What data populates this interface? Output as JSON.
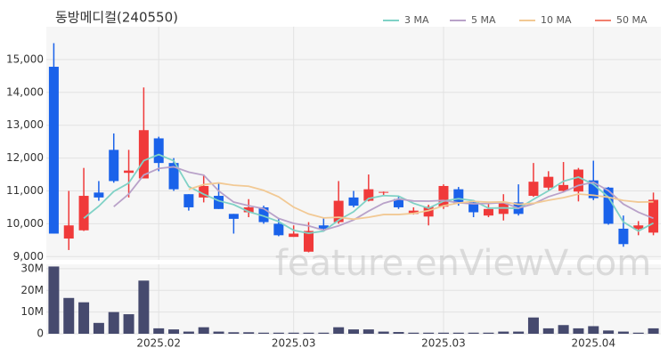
{
  "chart_data": {
    "type": "candlestick",
    "title": "동방메디컬(240550)",
    "watermark": "feature.enViewV.com",
    "categories": [
      null,
      null,
      null,
      null,
      null,
      null,
      null,
      "2025.02",
      null,
      null,
      null,
      null,
      null,
      null,
      null,
      null,
      "2025.03",
      null,
      null,
      null,
      null,
      null,
      null,
      null,
      null,
      null,
      "2025.03",
      null,
      null,
      null,
      null,
      null,
      null,
      null,
      null,
      null,
      "2025.04",
      null,
      null,
      null,
      null
    ],
    "open": [
      14780,
      9550,
      9800,
      10950,
      12250,
      11550,
      11380,
      12600,
      11850,
      10900,
      10800,
      10850,
      10300,
      10350,
      10500,
      10000,
      9600,
      9150,
      9950,
      10050,
      10800,
      10700,
      10950,
      10750,
      10300,
      10220,
      10520,
      11050,
      10650,
      10250,
      10300,
      10650,
      10850,
      11100,
      11000,
      10980,
      11320,
      11100,
      9850,
      9840,
      9730
    ],
    "high": [
      15500,
      11000,
      11700,
      11300,
      12750,
      12250,
      14150,
      12650,
      12000,
      10900,
      11500,
      11250,
      10300,
      10750,
      10550,
      10150,
      9950,
      10050,
      10200,
      11300,
      11000,
      11500,
      10980,
      10850,
      10500,
      10580,
      11200,
      11120,
      10720,
      10600,
      10900,
      11200,
      11850,
      11600,
      11880,
      11700,
      11920,
      11120,
      10250,
      10080,
      10950
    ],
    "low": [
      9700,
      9200,
      9780,
      10700,
      11250,
      10800,
      11380,
      11600,
      11000,
      10400,
      10650,
      10450,
      9700,
      10200,
      10000,
      9620,
      9600,
      9130,
      9800,
      10000,
      10500,
      10680,
      10850,
      10450,
      10280,
      9950,
      10450,
      10550,
      10200,
      10200,
      10100,
      10250,
      10820,
      11000,
      10970,
      10680,
      10720,
      9970,
      9300,
      9650,
      9650
    ],
    "close": [
      9700,
      9950,
      10850,
      10800,
      11300,
      11620,
      12850,
      11850,
      11050,
      10500,
      11150,
      10450,
      10150,
      10500,
      10050,
      9650,
      9700,
      9780,
      9850,
      10700,
      10550,
      11050,
      10970,
      10500,
      10400,
      10520,
      11150,
      10620,
      10350,
      10450,
      10650,
      10300,
      11280,
      11430,
      11180,
      11650,
      10780,
      10000,
      9380,
      9950,
      10730
    ],
    "volume": [
      31000000,
      16500000,
      14500000,
      5000000,
      10000000,
      9000000,
      24500000,
      2500000,
      2000000,
      1000000,
      3000000,
      1000000,
      700000,
      700000,
      500000,
      500000,
      500000,
      500000,
      500000,
      3000000,
      2000000,
      2000000,
      1000000,
      800000,
      500000,
      500000,
      500000,
      500000,
      500000,
      500000,
      1000000,
      1000000,
      7500000,
      2500000,
      4000000,
      2500000,
      3500000,
      1500000,
      1000000,
      500000,
      2500000
    ],
    "up_color": "#f03a3a",
    "down_color": "#1a62ea",
    "volume_color": "#464a6e",
    "series": [
      {
        "name": "3 MA",
        "color": "#80d2c6",
        "values": [
          null,
          null,
          10167,
          10533,
          10983,
          11240,
          11923,
          12107,
          11917,
          11133,
          10900,
          10700,
          10583,
          10367,
          10233,
          10067,
          9800,
          9710,
          9777,
          10110,
          10367,
          10767,
          10857,
          10840,
          10623,
          10473,
          10690,
          10763,
          10707,
          10473,
          10483,
          10467,
          10743,
          11003,
          11297,
          11420,
          11203,
          10810,
          10053,
          9777,
          10020
        ]
      },
      {
        "name": "5 MA",
        "color": "#b9a2c9",
        "values": [
          null,
          null,
          null,
          null,
          10520,
          10904,
          11484,
          11684,
          11734,
          11574,
          11480,
          11000,
          10660,
          10550,
          10460,
          10160,
          10010,
          9936,
          9806,
          9936,
          10116,
          10386,
          10624,
          10754,
          10694,
          10688,
          10708,
          10638,
          10608,
          10618,
          10644,
          10474,
          10606,
          10822,
          10968,
          11168,
          11264,
          11008,
          10598,
          10352,
          10166
        ]
      },
      {
        "name": "10 MA",
        "color": "#f2c994",
        "values": [
          null,
          null,
          null,
          null,
          null,
          null,
          null,
          null,
          null,
          11047,
          11192,
          11242,
          11172,
          11142,
          11017,
          10820,
          10505,
          10298,
          10178,
          10198,
          10138,
          10198,
          10280,
          10280,
          10315,
          10402,
          10547,
          10631,
          10681,
          10656,
          10666,
          10591,
          10622,
          10715,
          10793,
          10906,
          10869,
          10807,
          10710,
          10660,
          10668
        ]
      },
      {
        "name": "50 MA",
        "color": "#f2806e",
        "values": [
          null,
          null,
          null,
          null,
          null,
          null,
          null,
          null,
          null,
          null,
          null,
          null,
          null,
          null,
          null,
          null,
          null,
          null,
          null,
          null,
          null,
          null,
          null,
          null,
          null,
          null,
          null,
          null,
          null,
          null,
          null,
          null,
          null,
          null,
          null,
          null,
          null,
          null,
          null,
          null,
          null
        ]
      }
    ],
    "ylim": [
      8900,
      16000
    ],
    "yticks": [
      {
        "value": 9000,
        "label": "9,000"
      },
      {
        "value": 10000,
        "label": "10,000"
      },
      {
        "value": 11000,
        "label": "11,000"
      },
      {
        "value": 12000,
        "label": "12,000"
      },
      {
        "value": 13000,
        "label": "13,000"
      },
      {
        "value": 14000,
        "label": "14,000"
      },
      {
        "value": 15000,
        "label": "15,000"
      }
    ],
    "volume_ylim": [
      0,
      32000000
    ],
    "volume_yticks": [
      0,
      {
        "value": 10000000,
        "label": "10M"
      },
      {
        "value": 20000000,
        "label": "20M"
      },
      {
        "value": 30000000,
        "label": "30M"
      }
    ],
    "grid": true,
    "legend": "top-right"
  }
}
